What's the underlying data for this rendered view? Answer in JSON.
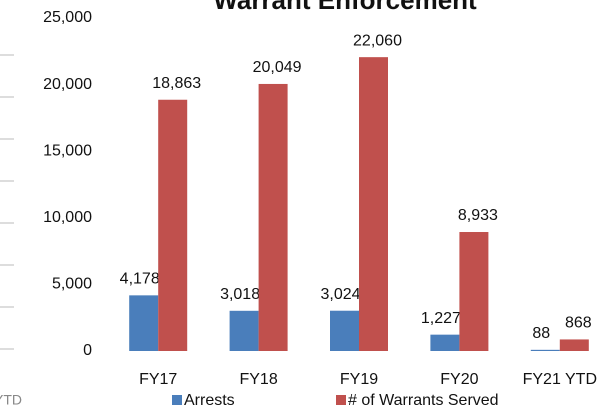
{
  "chart_data": {
    "type": "bar",
    "title": "Warrant Enforcement",
    "categories": [
      "FY17",
      "FY18",
      "FY19",
      "FY20",
      "FY21 YTD"
    ],
    "series": [
      {
        "name": "Arrests",
        "color": "#4a7ebb",
        "values": [
          4178,
          3018,
          3024,
          1227,
          88
        ],
        "value_labels": [
          "4,178",
          "3,018",
          "3,024",
          "1,227",
          "88"
        ]
      },
      {
        "name": "# of Warrants Served",
        "color": "#c0504d",
        "values": [
          18863,
          20049,
          22060,
          8933,
          868
        ],
        "value_labels": [
          "18,863",
          "20,049",
          "22,060",
          "8,933",
          "868"
        ]
      }
    ],
    "ylim": [
      0,
      25000
    ],
    "yticks": [
      0,
      {
        "value": 5000,
        "label": "5,000"
      },
      {
        "value": 10000,
        "label": "10,000"
      },
      {
        "value": 15000,
        "label": "15,000"
      },
      {
        "value": 20000,
        "label": "20,000"
      },
      {
        "value": 25000,
        "label": "25,000"
      }
    ],
    "grid": false,
    "legend": "bottom",
    "clipped_text": "YTD"
  }
}
